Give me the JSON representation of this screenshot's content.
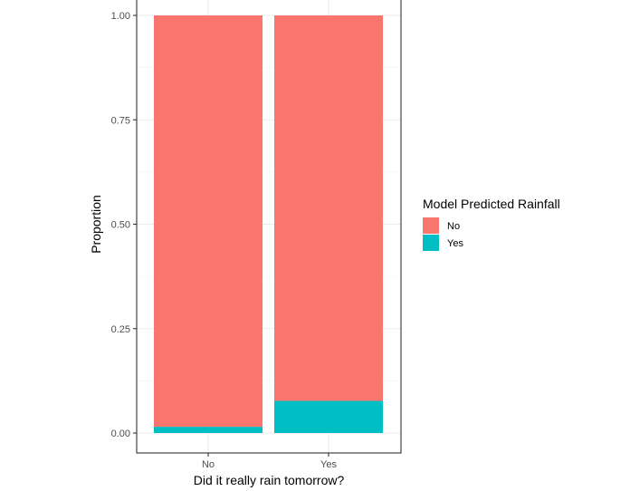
{
  "chart_data": {
    "type": "bar",
    "stacked": true,
    "normalized": true,
    "categories": [
      "No",
      "Yes"
    ],
    "series": [
      {
        "name": "No",
        "values": [
          0.985,
          0.923
        ],
        "color": "#F8766D"
      },
      {
        "name": "Yes",
        "values": [
          0.015,
          0.077
        ],
        "color": "#00BFC4"
      }
    ],
    "xlabel": "Did it really rain tomorrow?",
    "ylabel": "Proportion",
    "ylim": [
      0,
      1
    ],
    "yticks": [
      0.0,
      0.25,
      0.5,
      0.75,
      1.0
    ],
    "ytick_labels": [
      "0.00",
      "0.25",
      "0.50",
      "0.75",
      "1.00"
    ],
    "legend": {
      "title": "Model Predicted Rainfall",
      "position": "right",
      "entries": [
        "No",
        "Yes"
      ]
    },
    "grid": true,
    "theme": "bw"
  }
}
